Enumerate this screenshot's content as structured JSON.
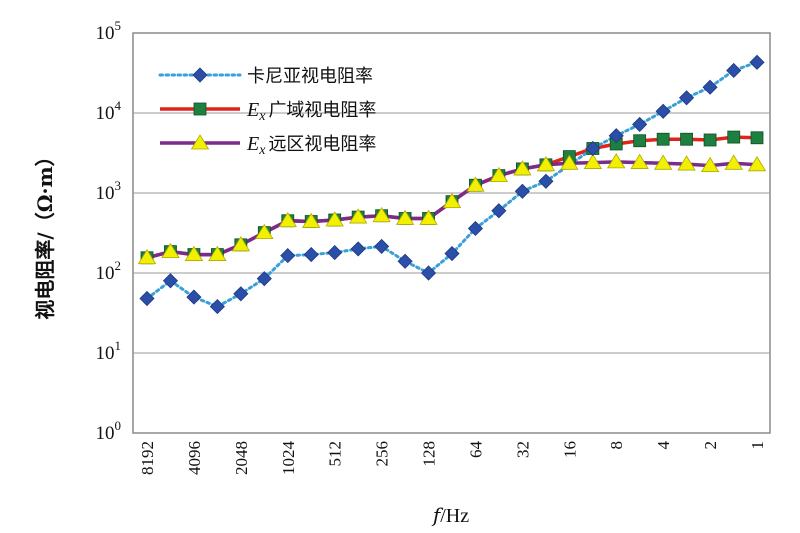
{
  "chart_data": {
    "type": "line",
    "xscale": "log2-reversed",
    "yscale": "log",
    "ylim": [
      1,
      100000
    ],
    "y_ticks": [
      {
        "base": "10",
        "exp": "0",
        "value": 1
      },
      {
        "base": "10",
        "exp": "1",
        "value": 10
      },
      {
        "base": "10",
        "exp": "2",
        "value": 100
      },
      {
        "base": "10",
        "exp": "3",
        "value": 1000
      },
      {
        "base": "10",
        "exp": "4",
        "value": 10000
      },
      {
        "base": "10",
        "exp": "5",
        "value": 100000
      }
    ],
    "x_tick_labels": [
      "8192",
      "4096",
      "2048",
      "1024",
      "512",
      "256",
      "128",
      "64",
      "32",
      "16",
      "8",
      "4",
      "2",
      "1"
    ],
    "xlabel_italic": "f",
    "xlabel_rest": "/Hz",
    "ylabel": "视电阻率/（Ω·m）",
    "grid": "horizontal",
    "legend_position": "top-left",
    "x": [
      8192,
      5792.6,
      4096,
      2896.3,
      2048,
      1448.2,
      1024,
      724.1,
      512,
      362,
      256,
      181,
      128,
      90.5,
      64,
      45.3,
      32,
      22.6,
      16,
      11.3,
      8,
      5.66,
      4,
      2.83,
      2,
      1.41,
      1
    ],
    "series": [
      {
        "name": "卡尼亚视电阻率",
        "color": "#2b4fa8",
        "line_style": "dotted",
        "line_color": "#3aa0d8",
        "marker": "diamond",
        "values": [
          48,
          80,
          50,
          38,
          55,
          85,
          165,
          170,
          180,
          200,
          215,
          140,
          100,
          175,
          360,
          600,
          1050,
          1400,
          null,
          3600,
          5200,
          7200,
          10500,
          15500,
          21000,
          34000,
          43000
        ]
      },
      {
        "name_italic": "E",
        "name_sub": "x",
        "name": "广域视电阻率",
        "color": "#e0241c",
        "marker": "square",
        "marker_color": "#1e8040",
        "values": [
          155,
          185,
          170,
          170,
          225,
          320,
          450,
          440,
          460,
          500,
          520,
          480,
          480,
          780,
          1250,
          1650,
          2000,
          2250,
          2850,
          3600,
          4100,
          4500,
          4700,
          4700,
          4600,
          5000,
          4900
        ]
      },
      {
        "name_italic": "E",
        "name_sub": "x",
        "name": "远区视电阻率",
        "color": "#7b2b8a",
        "marker": "triangle",
        "marker_color": "#f0f000",
        "values": [
          155,
          185,
          170,
          170,
          225,
          320,
          450,
          440,
          460,
          500,
          520,
          480,
          480,
          780,
          1250,
          1650,
          2000,
          2250,
          2350,
          2400,
          2450,
          2400,
          2350,
          2300,
          2200,
          2350,
          2250
        ]
      }
    ]
  }
}
